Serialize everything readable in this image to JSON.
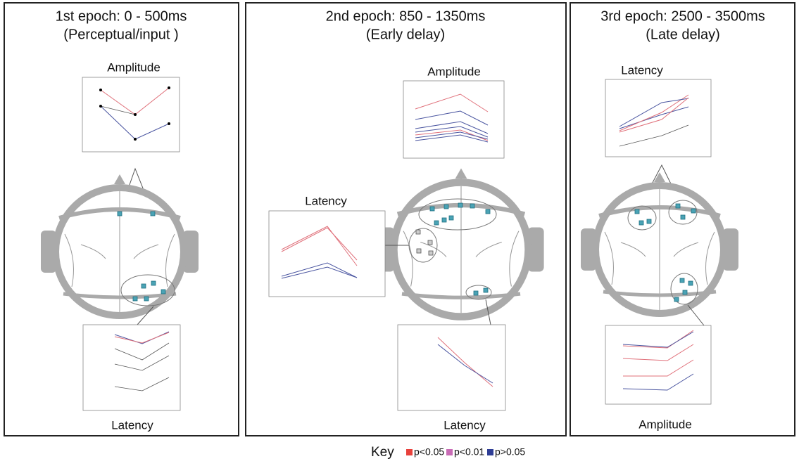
{
  "panels": [
    {
      "title": "1st epoch: 0 - 500ms",
      "subtitle": "(Perceptual/input )",
      "top_label": "Amplitude",
      "bottom_label": "Latency"
    },
    {
      "title": "2nd epoch: 850 - 1350ms",
      "subtitle": "(Early delay)",
      "top_label": "Amplitude",
      "left_label": "Latency",
      "bottom_label": "Latency"
    },
    {
      "title": "3rd epoch: 2500 - 3500ms",
      "subtitle": "(Late delay)",
      "top_label": "Latency",
      "bottom_label": "Amplitude"
    }
  ],
  "key": {
    "title": "Key",
    "items": [
      {
        "label": "p<0.05",
        "color": "#e8413c"
      },
      {
        "label": "p<0.01",
        "color": "#c86bb5"
      },
      {
        "label": "p>0.05",
        "color": "#2e3d95"
      }
    ]
  }
}
